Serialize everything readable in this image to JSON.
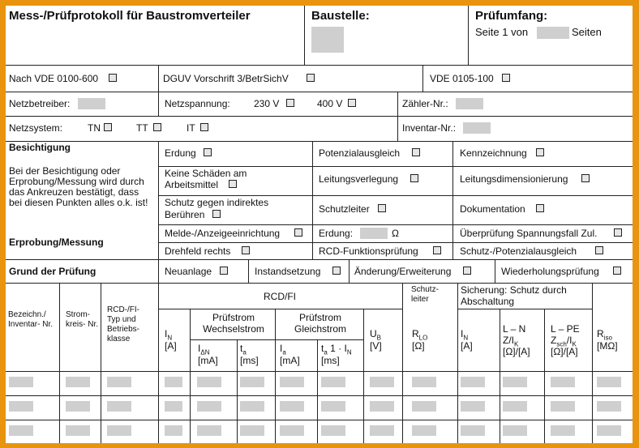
{
  "header": {
    "title": "Mess-/Prüfprotokoll  für Baustromverteiler",
    "baustelle": "Baustelle:",
    "pruefumfang": "Prüfumfang:",
    "seite": "Seite  1 von",
    "seiten": "Seiten"
  },
  "row_vde": {
    "vde0100": "Nach VDE 0100-600",
    "dguv": "DGUV Vorschrift 3/BetrSichV",
    "vde0105": "VDE 0105-100"
  },
  "row_netz": {
    "netzbetreiber": "Netzbetreiber:",
    "netzspannung": "Netzspannung:",
    "v230": "230 V",
    "v400": "400 V",
    "zaehler": "Zähler-Nr.:"
  },
  "row_system": {
    "netzsystem": "Netzsystem:",
    "tn": "TN",
    "tt": "TT",
    "it": "IT",
    "inventar": "Inventar-Nr.:"
  },
  "besichtigung": {
    "title": "Besichtigung",
    "note": "Bei der Besichtigung oder Erprobung/Messung wird durch das Ankreuzen bestätigt, dass bei diesen Punkten alles o.k. ist!",
    "erdung": "Erdung",
    "potenzialausgleich": "Potenzialausgleich",
    "kennzeichnung": "Kennzeichnung",
    "keine_schaeden_1": "Keine Schäden am",
    "keine_schaeden_2": "Arbeitsmittel",
    "leitungsverlegung": "Leitungsverlegung",
    "leitungsdimensionierung": "Leitungsdimensionierung",
    "schutz_1": "Schutz gegen indirektes",
    "schutz_2": "Berühren",
    "schutzleiter": "Schutzleiter",
    "dokumentation": "Dokumentation"
  },
  "erprobung": {
    "title": "Erprobung/Messung",
    "melde": "Melde-/Anzeigeeinrichtung",
    "erdung": "Erdung:",
    "ohm": "Ω",
    "ueberpruefung": "Überprüfung Spannungsfall Zul.",
    "drehfeld": "Drehfeld rechts",
    "rcd": "RCD-Funktionsprüfung",
    "schutz_pot": "Schutz-/Potenzialausgleich"
  },
  "grund": {
    "title": "Grund der Prüfung",
    "neuanlage": "Neuanlage",
    "instandsetzung": "Instandsetzung",
    "aenderung": "Änderung/Erweiterung",
    "wiederholung": "Wiederholungsprüfung"
  },
  "table": {
    "bezeichnung": "Bezeichn./ Inventar- Nr.",
    "stromkreis": "Strom- kreis- Nr.",
    "rcd_typ": "RCD-/FI- Typ und Betriebs- klasse",
    "rcd_fi": "RCD/FI",
    "schutzleiter": "Schutz- leiter",
    "sicherung": "Sicherung: Schutz durch Abschaltung",
    "pruefstrom_w": "Prüfstrom Wechselstrom",
    "pruefstrom_g": "Prüfstrom Gleichstrom",
    "in": "I",
    "in_sub": "N",
    "ampere": "[A]",
    "idn": "I",
    "idn_sub": "ΔN",
    "ma": "[mA]",
    "ta": "t",
    "ta_sub": "a",
    "ms": "[ms]",
    "ia": "I",
    "ia_sub": "a",
    "ta2": "t",
    "ta2_sub": "a",
    "ta2_rest": " 1 · I",
    "ta2_sub2": "N",
    "ub": "U",
    "ub_sub": "B",
    "volt": "[V]",
    "rlo": "R",
    "rlo_sub": "LO",
    "ohm": "[Ω]",
    "in2": "I",
    "in2_sub": "N",
    "amp2": "[A]",
    "ln": "L – N",
    "zik": "Z/I",
    "zik_sub": "K",
    "ln_unit": "[Ω]/[A]",
    "lpe": "L – PE",
    "zsch": "Z",
    "zsch_sub": "sch",
    "zsch_rest": "/I",
    "zsch_sub2": "K",
    "lpe_unit": "[Ω]/[A]",
    "riso": "R",
    "riso_sub": "iso",
    "mohm": "[MΩ]"
  }
}
